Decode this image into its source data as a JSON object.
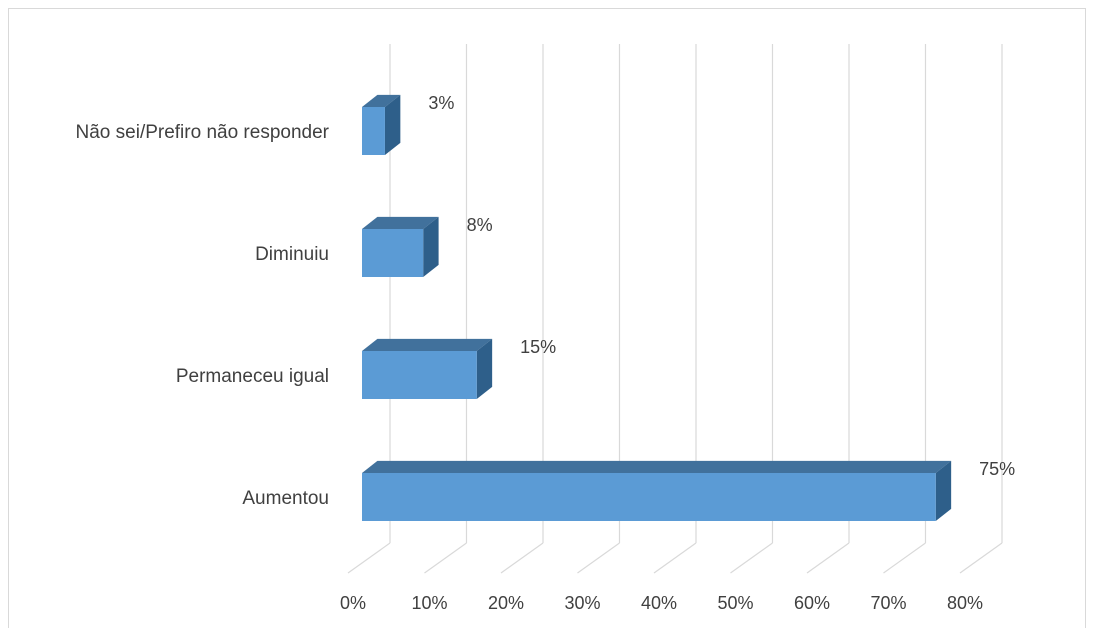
{
  "chart_data": {
    "type": "bar",
    "orientation": "horizontal",
    "style": "3d",
    "categories": [
      "Não sei/Prefiro não responder",
      "Diminuiu",
      "Permaneceu igual",
      "Aumentou"
    ],
    "values": [
      3,
      8,
      15,
      75
    ],
    "value_labels": [
      "3%",
      "8%",
      "15%",
      "75%"
    ],
    "xlim": [
      0,
      80
    ],
    "x_ticks": [
      0,
      10,
      20,
      30,
      40,
      50,
      60,
      70,
      80
    ],
    "x_tick_labels": [
      "0%",
      "10%",
      "20%",
      "30%",
      "40%",
      "50%",
      "60%",
      "70%",
      "80%"
    ],
    "title": "",
    "xlabel": "",
    "ylabel": "",
    "grid": true,
    "legend": "none",
    "colors": {
      "bar_front": "#5b9bd5",
      "bar_top": "#41719c",
      "bar_side": "#2e5f8a",
      "grid": "#d9d9d9",
      "text": "#404040"
    }
  }
}
